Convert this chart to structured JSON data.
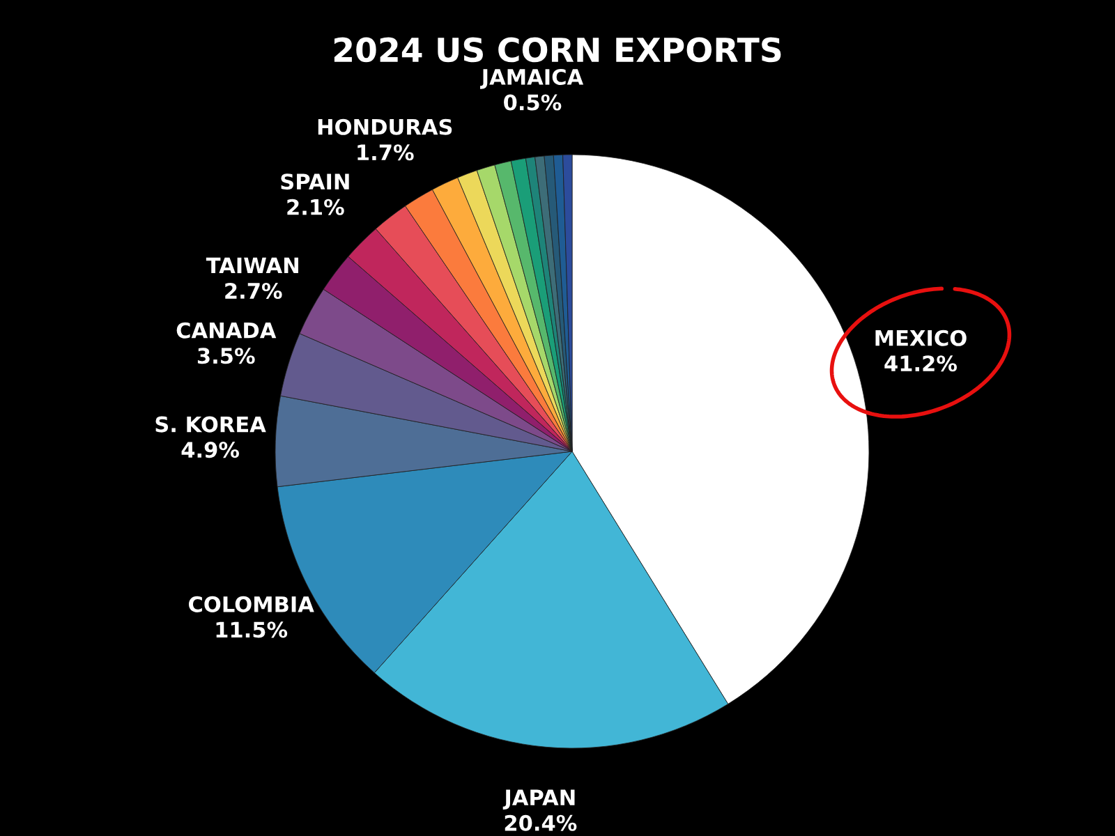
{
  "chart_data": {
    "type": "pie",
    "title": "2024 US CORN EXPORTS",
    "categories": [
      "MEXICO",
      "JAPAN",
      "COLOMBIA",
      "S. KOREA",
      "CANADA",
      "TAIWAN",
      null,
      "SPAIN",
      null,
      "HONDURAS",
      null,
      null,
      null,
      null,
      null,
      null,
      "JAMAICA",
      null,
      null,
      null
    ],
    "values": [
      41.2,
      20.4,
      11.5,
      4.9,
      3.5,
      2.7,
      2.2,
      2.1,
      2.0,
      1.7,
      1.5,
      1.1,
      1.0,
      0.9,
      0.8,
      0.5,
      0.5,
      0.5,
      0.5,
      0.5
    ],
    "value_labels": [
      "41.2%",
      "20.4%",
      "11.5%",
      "4.9%",
      "3.5%",
      "2.7%",
      null,
      "2.1%",
      null,
      "1.7%",
      null,
      null,
      null,
      null,
      null,
      null,
      "0.5%",
      null,
      null,
      null
    ],
    "colors": [
      "#ffffff",
      "#42b6d6",
      "#2e8bba",
      "#4e6e96",
      "#625a8e",
      "#7d4a8a",
      "#901f6c",
      "#c0265c",
      "#e64d58",
      "#fb7b3d",
      "#fdab3c",
      "#ecd85a",
      "#a6d86a",
      "#57b86c",
      "#1a9e78",
      "#1e8479",
      "#3d6d78",
      "#265a78",
      "#1f5c94",
      "#2c4c9c"
    ]
  }
}
